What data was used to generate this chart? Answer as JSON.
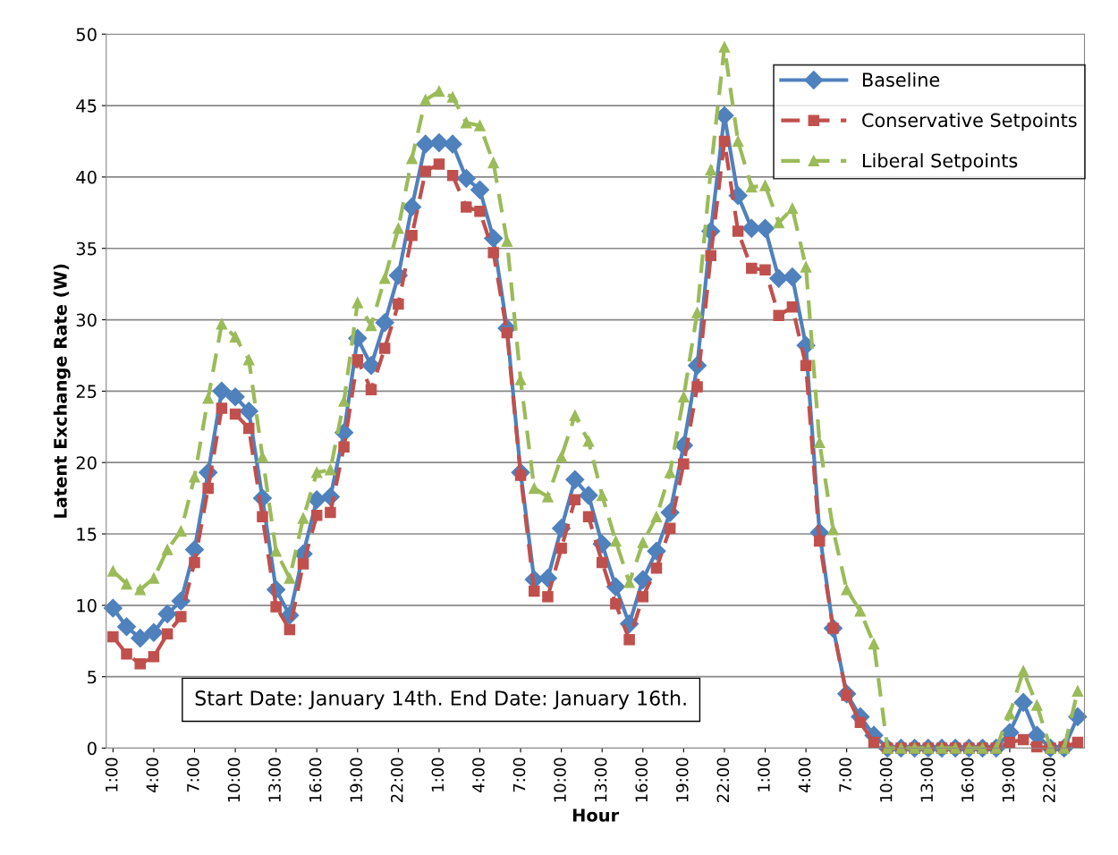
{
  "chart_data": {
    "type": "line",
    "xlabel": "Hour",
    "ylabel": "Latent Exchange Rate (W)",
    "categories": [
      "1:00",
      null,
      null,
      "4:00",
      null,
      null,
      "7:00",
      null,
      null,
      "10:00",
      null,
      null,
      "13:00",
      null,
      null,
      "16:00",
      null,
      null,
      "19:00",
      null,
      null,
      "22:00",
      null,
      null,
      "1:00",
      null,
      null,
      "4:00",
      null,
      null,
      "7:00",
      null,
      null,
      "10:00",
      null,
      null,
      "13:00",
      null,
      null,
      "16:00",
      null,
      null,
      "19:00",
      null,
      null,
      "22:00",
      null,
      null,
      "1:00",
      null,
      null,
      "4:00",
      null,
      null,
      "7:00",
      null,
      null,
      "10:00",
      null,
      null,
      "13:00",
      null,
      null,
      "16:00",
      null,
      null,
      "19:00",
      null,
      null,
      "22:00",
      null,
      null
    ],
    "series": [
      {
        "name": "Baseline",
        "color": "#4f81bd",
        "marker": "diamond",
        "line_style": "solid",
        "values": [
          9.8,
          8.5,
          7.7,
          8.1,
          9.4,
          10.3,
          13.9,
          19.3,
          25.0,
          24.6,
          23.6,
          17.5,
          11.1,
          9.3,
          13.6,
          17.4,
          17.6,
          22.1,
          28.7,
          26.8,
          29.8,
          33.1,
          37.9,
          42.3,
          42.4,
          42.3,
          39.9,
          39.1,
          35.7,
          29.4,
          19.3,
          11.8,
          11.9,
          15.4,
          18.8,
          17.7,
          14.3,
          11.3,
          8.7,
          11.8,
          13.8,
          16.5,
          21.2,
          26.8,
          36.2,
          44.3,
          38.7,
          36.4,
          36.4,
          32.9,
          33.0,
          28.2,
          15.1,
          8.4,
          3.8,
          2.2,
          0.9,
          0,
          0,
          0,
          0,
          0,
          0,
          0,
          0,
          0,
          1.1,
          3.2,
          0.9,
          0,
          0,
          2.2
        ]
      },
      {
        "name": "Conservative Setpoints",
        "color": "#c0504d",
        "marker": "square",
        "line_style": "dashed",
        "values": [
          7.8,
          6.6,
          5.9,
          6.4,
          8.0,
          9.2,
          13.0,
          18.2,
          23.8,
          23.4,
          22.4,
          16.2,
          9.9,
          8.3,
          12.9,
          16.3,
          16.5,
          21.1,
          27.2,
          25.1,
          28.0,
          31.1,
          35.9,
          40.4,
          40.9,
          40.1,
          37.9,
          37.6,
          34.7,
          29.1,
          19.1,
          11.0,
          10.6,
          14.0,
          17.4,
          16.2,
          13.0,
          10.1,
          7.6,
          10.6,
          12.6,
          15.4,
          19.9,
          25.3,
          34.5,
          42.5,
          36.2,
          33.6,
          33.5,
          30.3,
          30.9,
          26.8,
          14.5,
          8.4,
          3.7,
          1.8,
          0.4,
          0,
          0,
          0,
          0,
          0,
          0,
          0,
          0,
          0,
          0.4,
          0.6,
          0.1,
          0,
          0.1,
          0.4
        ]
      },
      {
        "name": "Liberal Setpoints",
        "color": "#9bbb59",
        "marker": "triangle",
        "line_style": "dashed",
        "values": [
          12.4,
          11.5,
          11.1,
          11.9,
          13.9,
          15.2,
          19.0,
          24.5,
          29.7,
          28.8,
          27.2,
          20.4,
          13.8,
          11.9,
          16.1,
          19.3,
          19.5,
          24.3,
          31.2,
          29.6,
          32.9,
          36.4,
          41.3,
          45.4,
          46.0,
          45.6,
          43.8,
          43.6,
          41.0,
          35.5,
          25.8,
          18.2,
          17.6,
          20.4,
          23.3,
          21.5,
          17.7,
          14.5,
          11.6,
          14.4,
          16.2,
          19.3,
          24.6,
          30.5,
          40.5,
          49.1,
          42.5,
          39.3,
          39.4,
          36.8,
          37.8,
          33.7,
          21.4,
          15.3,
          11.1,
          9.6,
          7.3,
          0,
          0,
          0,
          0,
          0,
          0,
          0,
          0,
          0,
          2.4,
          5.4,
          3.0,
          0,
          0,
          4.0
        ]
      }
    ],
    "ylim": [
      0,
      50
    ],
    "yticks": [
      0,
      5,
      10,
      15,
      20,
      25,
      30,
      35,
      40,
      45,
      50
    ],
    "grid": "y",
    "legend": "top right",
    "annotations": [
      "Start Date: January 14th. End Date: January 16th."
    ]
  }
}
